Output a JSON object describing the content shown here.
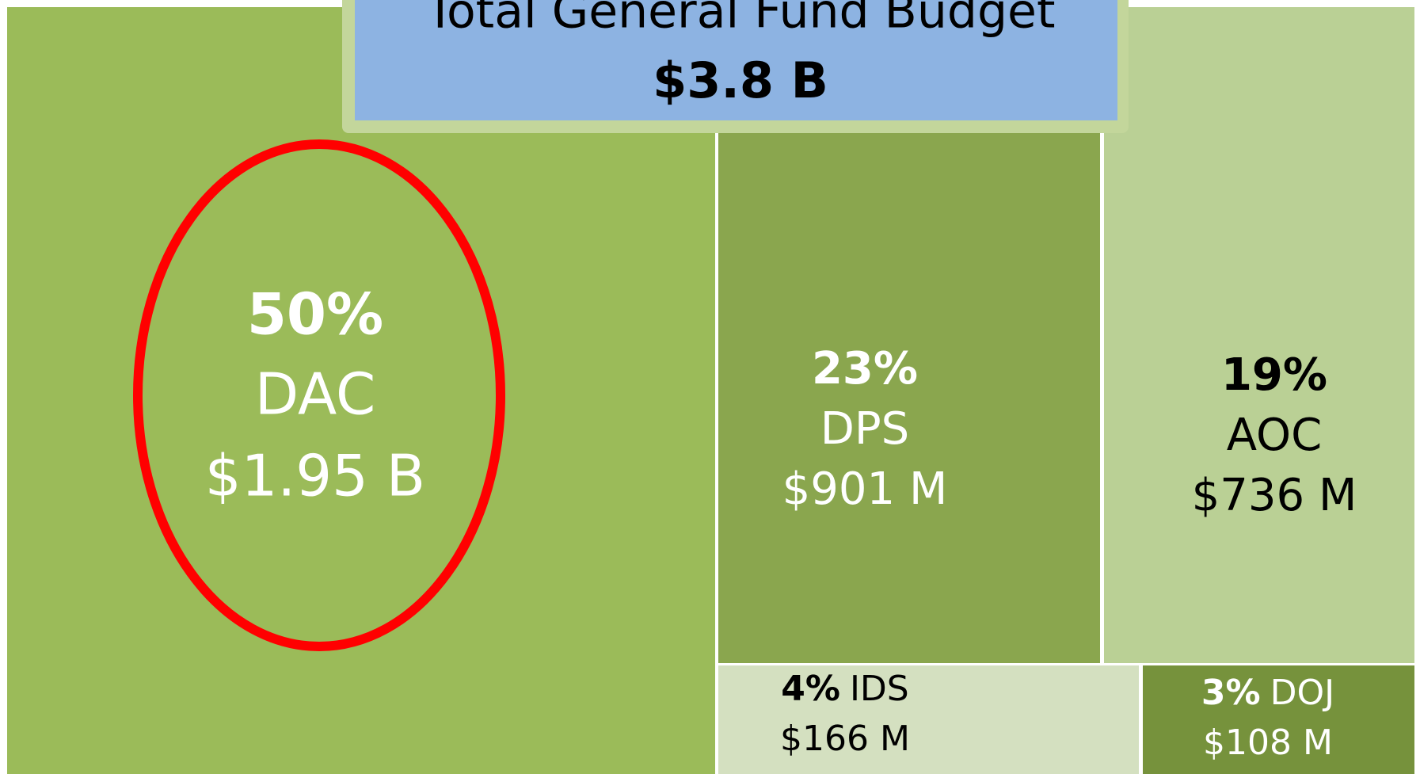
{
  "chart_data": {
    "type": "treemap",
    "title": "Total General Fund Budget",
    "subtitle": "$3.8 B",
    "categories": [
      "DAC",
      "DPS",
      "AOC",
      "IDS",
      "DOJ"
    ],
    "values": [
      50,
      23,
      19,
      4,
      3
    ],
    "value_labels": [
      "50%",
      "23%",
      "19%",
      "4%",
      "3%"
    ],
    "amounts": [
      1950000000,
      901000000,
      736000000,
      166000000,
      108000000
    ],
    "amount_labels": [
      "$1.95 B",
      "$901 M",
      "$736 M",
      "$166 M",
      "$108 M"
    ],
    "colors": [
      "#9bbb59",
      "#8aa64e",
      "#bad095",
      "#d4e0c0",
      "#76923c"
    ]
  }
}
